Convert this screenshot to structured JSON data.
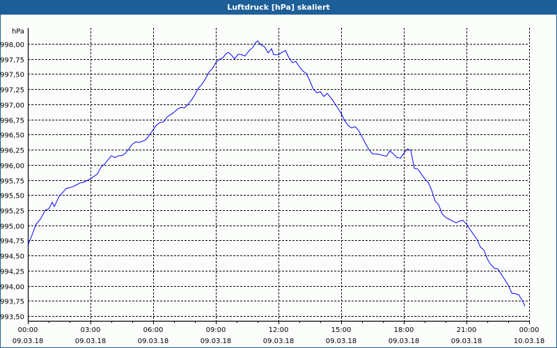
{
  "window": {
    "title": "Luftdruck [hPa] skaliert"
  },
  "colors": {
    "titlebar": "#1d5f98",
    "line": "#0000ff",
    "grid": "#000000"
  },
  "chart_data": {
    "type": "line",
    "title": "Luftdruck [hPa] skaliert",
    "ylabel": "hPa",
    "xlabel": "",
    "ylim": [
      993.5,
      998.0
    ],
    "xlim_minutes": [
      0,
      1440
    ],
    "grid": true,
    "y_ticks": [
      "993,50",
      "993,75",
      "994,00",
      "994,25",
      "994,50",
      "994,75",
      "995,00",
      "995,25",
      "995,50",
      "995,75",
      "996,00",
      "996,25",
      "996,50",
      "996,75",
      "997,00",
      "997,25",
      "997,50",
      "997,75",
      "998,00"
    ],
    "x_ticks": [
      {
        "time": "00:00",
        "date": "09.03.18"
      },
      {
        "time": "03:00",
        "date": "09.03.18"
      },
      {
        "time": "06:00",
        "date": "09.03.18"
      },
      {
        "time": "09:00",
        "date": "09.03.18"
      },
      {
        "time": "12:00",
        "date": "09.03.18"
      },
      {
        "time": "15:00",
        "date": "09.03.18"
      },
      {
        "time": "18:00",
        "date": "09.03.18"
      },
      {
        "time": "21:00",
        "date": "09.03.18"
      },
      {
        "time": "00:00",
        "date": "10.03.18"
      }
    ],
    "series": [
      {
        "name": "Luftdruck",
        "x_minutes": [
          0,
          10,
          24,
          36,
          50,
          60,
          70,
          76,
          90,
          100,
          110,
          120,
          130,
          140,
          150,
          160,
          180,
          200,
          210,
          220,
          230,
          240,
          250,
          260,
          270,
          280,
          290,
          300,
          310,
          320,
          330,
          340,
          350,
          360,
          370,
          380,
          390,
          400,
          410,
          420,
          430,
          440,
          450,
          460,
          470,
          480,
          490,
          500,
          510,
          520,
          530,
          540,
          550,
          560,
          570,
          576,
          584,
          594,
          604,
          614,
          624,
          636,
          646,
          654,
          660,
          670,
          680,
          690,
          700,
          706,
          720,
          730,
          740,
          750,
          760,
          770,
          780,
          790,
          800,
          810,
          820,
          830,
          840,
          850,
          860,
          870,
          880,
          890,
          900,
          910,
          920,
          930,
          940,
          950,
          960,
          970,
          980,
          990,
          1000,
          1010,
          1030,
          1040,
          1050,
          1060,
          1070,
          1080,
          1090,
          1100,
          1110,
          1120,
          1130,
          1140,
          1150,
          1160,
          1170,
          1180,
          1190,
          1200,
          1210,
          1220,
          1230,
          1240,
          1250,
          1260,
          1270,
          1280,
          1290,
          1300,
          1310,
          1320,
          1330,
          1340,
          1350,
          1360,
          1370,
          1380,
          1390,
          1400,
          1410,
          1420,
          1428
        ],
        "values": [
          994.67,
          994.81,
          995.02,
          995.1,
          995.25,
          995.27,
          995.38,
          995.31,
          995.48,
          995.54,
          995.61,
          995.62,
          995.64,
          995.67,
          995.7,
          995.71,
          995.77,
          995.85,
          995.96,
          996.01,
          996.08,
          996.15,
          996.12,
          996.15,
          996.15,
          996.19,
          996.26,
          996.34,
          996.38,
          996.37,
          996.39,
          996.42,
          996.5,
          996.58,
          996.66,
          996.7,
          996.71,
          996.79,
          996.83,
          996.87,
          996.92,
          996.95,
          996.94,
          997.0,
          997.07,
          997.16,
          997.27,
          997.33,
          997.42,
          997.53,
          997.59,
          997.69,
          997.74,
          997.77,
          997.84,
          997.86,
          997.82,
          997.75,
          997.83,
          997.82,
          997.8,
          997.89,
          997.94,
          998.02,
          998.05,
          997.98,
          997.95,
          997.85,
          997.92,
          997.82,
          997.82,
          997.86,
          997.89,
          997.77,
          997.69,
          997.71,
          997.62,
          997.55,
          997.51,
          997.39,
          997.25,
          997.19,
          997.21,
          997.13,
          997.18,
          997.11,
          997.03,
          996.94,
          996.85,
          996.73,
          996.65,
          996.61,
          996.63,
          996.57,
          996.46,
          996.35,
          996.25,
          996.18,
          996.18,
          996.17,
          996.14,
          996.23,
          996.18,
          996.12,
          996.11,
          996.19,
          996.26,
          996.24,
          995.94,
          995.93,
          995.85,
          995.77,
          995.71,
          995.58,
          995.4,
          995.34,
          995.19,
          995.13,
          995.1,
          995.07,
          995.04,
          995.07,
          995.08,
          995.02,
          994.93,
          994.85,
          994.77,
          994.64,
          994.59,
          994.44,
          994.35,
          994.29,
          994.28,
          994.19,
          994.1,
          994.01,
          993.88,
          993.87,
          993.85,
          993.76,
          993.66
        ]
      }
    ]
  }
}
